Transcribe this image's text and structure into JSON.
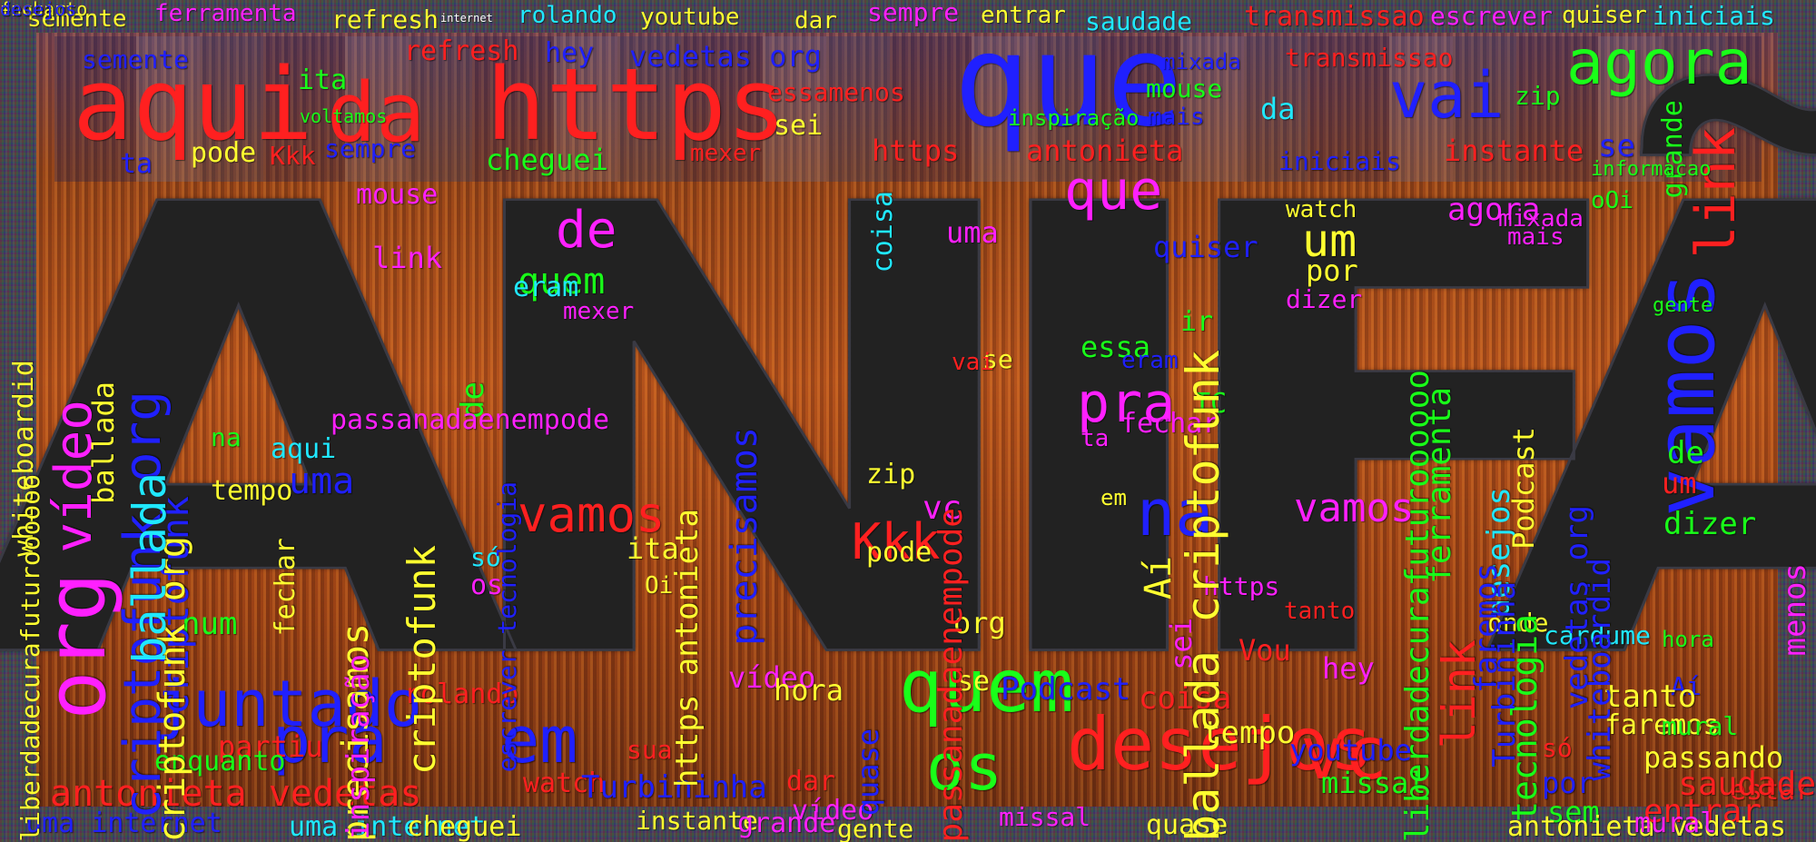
{
  "big_word": "MANIFÃO",
  "colors": {
    "red": "#ff2020",
    "green": "#19ff19",
    "blue": "#2020ff",
    "cyan": "#20e8ff",
    "magenta": "#ff20ff",
    "yellow": "#ffff30",
    "background": "#3b3b4a"
  },
  "words": [
    {
      "t": "semente",
      "c": "#ffff30"
    },
    {
      "t": "ferramenta",
      "c": "#ff20ff"
    },
    {
      "t": "refresh",
      "c": "#ffff30"
    },
    {
      "t": "internet",
      "c": "#ffffff"
    },
    {
      "t": "rolando",
      "c": "#20e8ff"
    },
    {
      "t": "youtube",
      "c": "#ffff30"
    },
    {
      "t": "dar",
      "c": "#ffff30"
    },
    {
      "t": "sempre",
      "c": "#ff20ff"
    },
    {
      "t": "entrar",
      "c": "#ffff30"
    },
    {
      "t": "saudade",
      "c": "#20e8ff"
    },
    {
      "t": "transmissao",
      "c": "#ff2020"
    },
    {
      "t": "escrever",
      "c": "#ff20ff"
    },
    {
      "t": "quiser",
      "c": "#ffff30"
    },
    {
      "t": "iniciais",
      "c": "#20e8ff"
    },
    {
      "t": "aqui",
      "c": "#ff2020"
    },
    {
      "t": "da",
      "c": "#ff2020"
    },
    {
      "t": "https",
      "c": "#ff2020"
    },
    {
      "t": "que",
      "c": "#2020ff"
    },
    {
      "t": "vai",
      "c": "#2020ff"
    },
    {
      "t": "agora",
      "c": "#19ff19"
    },
    {
      "t": "semente",
      "c": "#2020ff"
    },
    {
      "t": "refresh",
      "c": "#ff2020"
    },
    {
      "t": "hey",
      "c": "#2020ff"
    },
    {
      "t": "vedetas org",
      "c": "#2020ff"
    },
    {
      "t": "essamenos",
      "c": "#ff2020"
    },
    {
      "t": "mouse",
      "c": "#19ff19"
    },
    {
      "t": "mixada",
      "c": "#2020ff"
    },
    {
      "t": "transmissao",
      "c": "#ff2020"
    },
    {
      "t": "zip",
      "c": "#19ff19"
    },
    {
      "t": "ita",
      "c": "#19ff19"
    },
    {
      "t": "voltamos",
      "c": "#19ff19"
    },
    {
      "t": "pode",
      "c": "#ffff30"
    },
    {
      "t": "Kkk",
      "c": "#ff2020"
    },
    {
      "t": "sempre",
      "c": "#2020ff"
    },
    {
      "t": "cheguei",
      "c": "#19ff19"
    },
    {
      "t": "mexer",
      "c": "#ff2020"
    },
    {
      "t": "https",
      "c": "#ff2020"
    },
    {
      "t": "antonieta",
      "c": "#ff2020"
    },
    {
      "t": "iniciais",
      "c": "#2020ff"
    },
    {
      "t": "instante",
      "c": "#ff2020"
    },
    {
      "t": "se",
      "c": "#2020ff"
    },
    {
      "t": "da",
      "c": "#20e8ff"
    },
    {
      "t": "mais",
      "c": "#2020ff"
    },
    {
      "t": "inspiração",
      "c": "#19ff19"
    },
    {
      "t": "sei",
      "c": "#ffff30"
    },
    {
      "t": "ta",
      "c": "#2020ff"
    },
    {
      "t": "link",
      "c": "#ff2020"
    },
    {
      "t": "grande",
      "c": "#19ff19"
    },
    {
      "t": "informacao",
      "c": "#19ff19"
    },
    {
      "t": "oOi",
      "c": "#19ff19"
    },
    {
      "t": "que",
      "c": "#ff20ff"
    },
    {
      "t": "de",
      "c": "#ff20ff"
    },
    {
      "t": "quem",
      "c": "#19ff19"
    },
    {
      "t": "mouse",
      "c": "#ff20ff"
    },
    {
      "t": "link",
      "c": "#ff20ff"
    },
    {
      "t": "um",
      "c": "#ffff30"
    },
    {
      "t": "watch",
      "c": "#ffff30"
    },
    {
      "t": "agora",
      "c": "#ff20ff"
    },
    {
      "t": "mais",
      "c": "#ff20ff"
    },
    {
      "t": "mixada",
      "c": "#ff20ff"
    },
    {
      "t": "por",
      "c": "#ffff30"
    },
    {
      "t": "quiser",
      "c": "#2020ff"
    },
    {
      "t": "dizer",
      "c": "#ff20ff"
    },
    {
      "t": "uma",
      "c": "#ff20ff"
    },
    {
      "t": "coisa",
      "c": "#20e8ff"
    },
    {
      "t": "eram",
      "c": "#20e8ff"
    },
    {
      "t": "mexer",
      "c": "#ff20ff"
    },
    {
      "t": "ir",
      "c": "#19ff19"
    },
    {
      "t": "essa",
      "c": "#19ff19"
    },
    {
      "t": "eram",
      "c": "#2020ff"
    },
    {
      "t": "se",
      "c": "#ffff30"
    },
    {
      "t": "pra",
      "c": "#ff20ff"
    },
    {
      "t": "TC",
      "c": "#19ff19"
    },
    {
      "t": "fechar",
      "c": "#ff20ff"
    },
    {
      "t": "ta",
      "c": "#ff20ff"
    },
    {
      "t": "na",
      "c": "#2020ff"
    },
    {
      "t": "vamos",
      "c": "#ff20ff"
    },
    {
      "t": "desejos",
      "c": "#20e8ff"
    },
    {
      "t": "vamos",
      "c": "#2020ff"
    },
    {
      "t": "de",
      "c": "#19ff19"
    },
    {
      "t": "um",
      "c": "#ff2020"
    },
    {
      "t": "dizer",
      "c": "#19ff19"
    },
    {
      "t": "gente",
      "c": "#19ff19"
    },
    {
      "t": "org",
      "c": "#ff20ff"
    },
    {
      "t": "juntado",
      "c": "#2020ff"
    },
    {
      "t": "pra",
      "c": "#2020ff"
    },
    {
      "t": "em",
      "c": "#2020ff"
    },
    {
      "t": "quem",
      "c": "#19ff19"
    },
    {
      "t": "desejos",
      "c": "#ff2020"
    },
    {
      "t": "vc",
      "c": "#ff2020"
    },
    {
      "t": "os",
      "c": "#19ff19"
    },
    {
      "t": "vamos",
      "c": "#ff2020"
    },
    {
      "t": "uma",
      "c": "#2020ff"
    },
    {
      "t": "aqui",
      "c": "#20e8ff"
    },
    {
      "t": "na",
      "c": "#19ff19"
    },
    {
      "t": "tempo",
      "c": "#ffff30"
    },
    {
      "t": "num",
      "c": "#19ff19"
    },
    {
      "t": "os",
      "c": "#ff20ff"
    },
    {
      "t": "só",
      "c": "#20e8ff"
    },
    {
      "t": "Oi",
      "c": "#ffff30"
    },
    {
      "t": "ita",
      "c": "#ffff30"
    },
    {
      "t": "Kkk",
      "c": "#ff2020"
    },
    {
      "t": "zip",
      "c": "#ffff30"
    },
    {
      "t": "vc",
      "c": "#ff20ff"
    },
    {
      "t": "org",
      "c": "#ffff30"
    },
    {
      "t": "vai",
      "c": "#ff2020"
    },
    {
      "t": "em",
      "c": "#ffff30"
    },
    {
      "t": "pode",
      "c": "#ffff30"
    },
    {
      "t": "se",
      "c": "#ffff30"
    },
    {
      "t": "Aí",
      "c": "#ffff30"
    },
    {
      "t": "Vou",
      "c": "#ff2020"
    },
    {
      "t": "sei",
      "c": "#ff20ff"
    },
    {
      "t": "https",
      "c": "#ff20ff"
    },
    {
      "t": "tanto",
      "c": "#ff2020"
    },
    {
      "t": "hey",
      "c": "#ff20ff"
    },
    {
      "t": "onde",
      "c": "#ffff30"
    },
    {
      "t": "cardume",
      "c": "#20e8ff"
    },
    {
      "t": "hora",
      "c": "#19ff19"
    },
    {
      "t": "Aí",
      "c": "#2020ff"
    },
    {
      "t": "tanto",
      "c": "#ffff30"
    },
    {
      "t": "faremos",
      "c": "#ffff30"
    },
    {
      "t": "mural",
      "c": "#19ff19"
    },
    {
      "t": "estar",
      "c": "#ff2020"
    },
    {
      "t": "entrar",
      "c": "#ff2020"
    },
    {
      "t": "por",
      "c": "#2020ff"
    },
    {
      "t": "sem",
      "c": "#19ff19"
    },
    {
      "t": "só",
      "c": "#ff2020"
    },
    {
      "t": "passando",
      "c": "#ffff30"
    },
    {
      "t": "saudade",
      "c": "#ff2020"
    },
    {
      "t": "vídeo",
      "c": "#ff20ff"
    },
    {
      "t": "rolando",
      "c": "#ff2020"
    },
    {
      "t": "hora",
      "c": "#ffff30"
    },
    {
      "t": "Podcast",
      "c": "#2020ff"
    },
    {
      "t": "coisa",
      "c": "#ff2020"
    },
    {
      "t": "tempo",
      "c": "#ffff30"
    },
    {
      "t": "youtube",
      "c": "#2020ff"
    },
    {
      "t": "missal",
      "c": "#19ff19"
    },
    {
      "t": "partiu",
      "c": "#ff2020"
    },
    {
      "t": "enquanto",
      "c": "#19ff19"
    },
    {
      "t": "sua",
      "c": "#ff2020"
    },
    {
      "t": "watch",
      "c": "#ff2020"
    },
    {
      "t": "dar",
      "c": "#ff2020"
    },
    {
      "t": "vídeo",
      "c": "#ff20ff"
    },
    {
      "t": "quase",
      "c": "#2020ff"
    },
    {
      "t": "Turbininha",
      "c": "#2020ff"
    },
    {
      "t": "antonieta vedetas",
      "c": "#ff2020"
    },
    {
      "t": "uma internet",
      "c": "#2020ff"
    },
    {
      "t": "uma internet",
      "c": "#20e8ff"
    },
    {
      "t": "cheguei",
      "c": "#ffff30"
    },
    {
      "t": "instante",
      "c": "#ffff30"
    },
    {
      "t": "grande",
      "c": "#ff20ff"
    },
    {
      "t": "gente",
      "c": "#ffff30"
    },
    {
      "t": "missal",
      "c": "#ff20ff"
    },
    {
      "t": "quase",
      "c": "#ffff30"
    },
    {
      "t": "antonieta vedetas",
      "c": "#ffff30"
    },
    {
      "t": "mural",
      "c": "#ff20ff"
    },
    {
      "t": "vídeo",
      "c": "#ff20ff"
    },
    {
      "t": "criptofunk org",
      "c": "#2020ff"
    },
    {
      "t": "criptofunk",
      "c": "#2020ff"
    },
    {
      "t": "criptofunk org",
      "c": "#ffff30"
    },
    {
      "t": "criptofunk",
      "c": "#ffff30"
    },
    {
      "t": "ballada",
      "c": "#20e8ff"
    },
    {
      "t": "ballada",
      "c": "#ffff30"
    },
    {
      "t": "precisamos",
      "c": "#2020ff"
    },
    {
      "t": "https antonieta",
      "c": "#ffff30"
    },
    {
      "t": "passanadaenempode",
      "c": "#ff2020"
    },
    {
      "t": "liberdadecurafuturoooooo",
      "c": "#19ff19"
    },
    {
      "t": "ferramenta",
      "c": "#19ff19"
    },
    {
      "t": "tecnologia",
      "c": "#19ff19"
    },
    {
      "t": "whiteboardid",
      "c": "#2020ff"
    },
    {
      "t": "vedetas org",
      "c": "#2020ff"
    },
    {
      "t": "Podcast",
      "c": "#ffff30"
    },
    {
      "t": "Turbininha",
      "c": "#2020ff"
    },
    {
      "t": "link",
      "c": "#ff2020"
    },
    {
      "t": "de",
      "c": "#19ff19"
    },
    {
      "t": "escrever tecnologia",
      "c": "#2020ff"
    },
    {
      "t": "faremos",
      "c": "#2020ff"
    },
    {
      "t": "menos",
      "c": "#ff20ff"
    },
    {
      "t": "whiteboardid",
      "c": "#ffff30"
    },
    {
      "t": "liberdadecurafuturoooooo",
      "c": "#ffff30"
    },
    {
      "t": "precisamos",
      "c": "#ffff30"
    },
    {
      "t": "passanadaenempode",
      "c": "#ff20ff"
    },
    {
      "t": "inspiração",
      "c": "#ff20ff"
    },
    {
      "t": "fechar",
      "c": "#ffff30"
    },
    {
      "t": "ballada criptofunk",
      "c": "#ffff30"
    },
    {
      "t": "fechar",
      "c": "#ffff30"
    },
    {
      "t": "enquanto",
      "c": "#ffff30"
    },
    {
      "t": "desejos",
      "c": "#2020ff"
    }
  ]
}
